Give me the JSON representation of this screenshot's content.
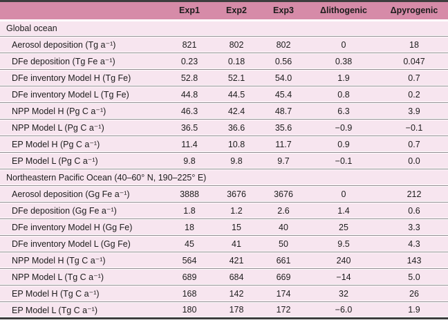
{
  "colors": {
    "header_bg": "#d68ba8",
    "row_bg": "#f7e5ef",
    "border_dark": "#3d3d3d",
    "separator": "#8f878d",
    "text": "#1c1c1c"
  },
  "table": {
    "columns": [
      "",
      "Exp1",
      "Exp2",
      "Exp3",
      "Δlithogenic",
      "Δpyrogenic"
    ],
    "sections": [
      {
        "title": "Global ocean",
        "rows": [
          {
            "label": "Aerosol deposition (Tg a⁻¹)",
            "values": [
              "821",
              "802",
              "802",
              "0",
              "18"
            ]
          },
          {
            "label": "DFe deposition (Tg Fe a⁻¹)",
            "values": [
              "0.23",
              "0.18",
              "0.56",
              "0.38",
              "0.047"
            ]
          },
          {
            "label": "DFe inventory Model H (Tg Fe)",
            "values": [
              "52.8",
              "52.1",
              "54.0",
              "1.9",
              "0.7"
            ]
          },
          {
            "label": "DFe inventory Model L (Tg Fe)",
            "values": [
              "44.8",
              "44.5",
              "45.4",
              "0.8",
              "0.2"
            ]
          },
          {
            "label": "NPP Model H (Pg C a⁻¹)",
            "values": [
              "46.3",
              "42.4",
              "48.7",
              "6.3",
              "3.9"
            ]
          },
          {
            "label": "NPP Model L (Pg C a⁻¹)",
            "values": [
              "36.5",
              "36.6",
              "35.6",
              "−0.9",
              "−0.1"
            ]
          },
          {
            "label": "EP Model H (Pg C a⁻¹)",
            "values": [
              "11.4",
              "10.8",
              "11.7",
              "0.9",
              "0.7"
            ]
          },
          {
            "label": "EP Model L (Pg C a⁻¹)",
            "values": [
              "9.8",
              "9.8",
              "9.7",
              "−0.1",
              "0.0"
            ]
          }
        ]
      },
      {
        "title": "Northeastern Pacific Ocean (40–60° N, 190–225° E)",
        "rows": [
          {
            "label": "Aerosol deposition (Gg Fe a⁻¹)",
            "values": [
              "3888",
              "3676",
              "3676",
              "0",
              "212"
            ]
          },
          {
            "label": "DFe deposition (Gg Fe a⁻¹)",
            "values": [
              "1.8",
              "1.2",
              "2.6",
              "1.4",
              "0.6"
            ]
          },
          {
            "label": "DFe inventory Model H (Gg Fe)",
            "values": [
              "18",
              "15",
              "40",
              "25",
              "3.3"
            ]
          },
          {
            "label": "DFe inventory Model L (Gg Fe)",
            "values": [
              "45",
              "41",
              "50",
              "9.5",
              "4.3"
            ]
          },
          {
            "label": "NPP Model H (Tg C a⁻¹)",
            "values": [
              "564",
              "421",
              "661",
              "240",
              "143"
            ]
          },
          {
            "label": "NPP Model L (Tg C a⁻¹)",
            "values": [
              "689",
              "684",
              "669",
              "−14",
              "5.0"
            ]
          },
          {
            "label": "EP Model H (Tg C a⁻¹)",
            "values": [
              "168",
              "142",
              "174",
              "32",
              "26"
            ]
          },
          {
            "label": "EP Model L (Tg C a⁻¹)",
            "values": [
              "180",
              "178",
              "172",
              "−6.0",
              "1.9"
            ]
          }
        ]
      }
    ]
  }
}
